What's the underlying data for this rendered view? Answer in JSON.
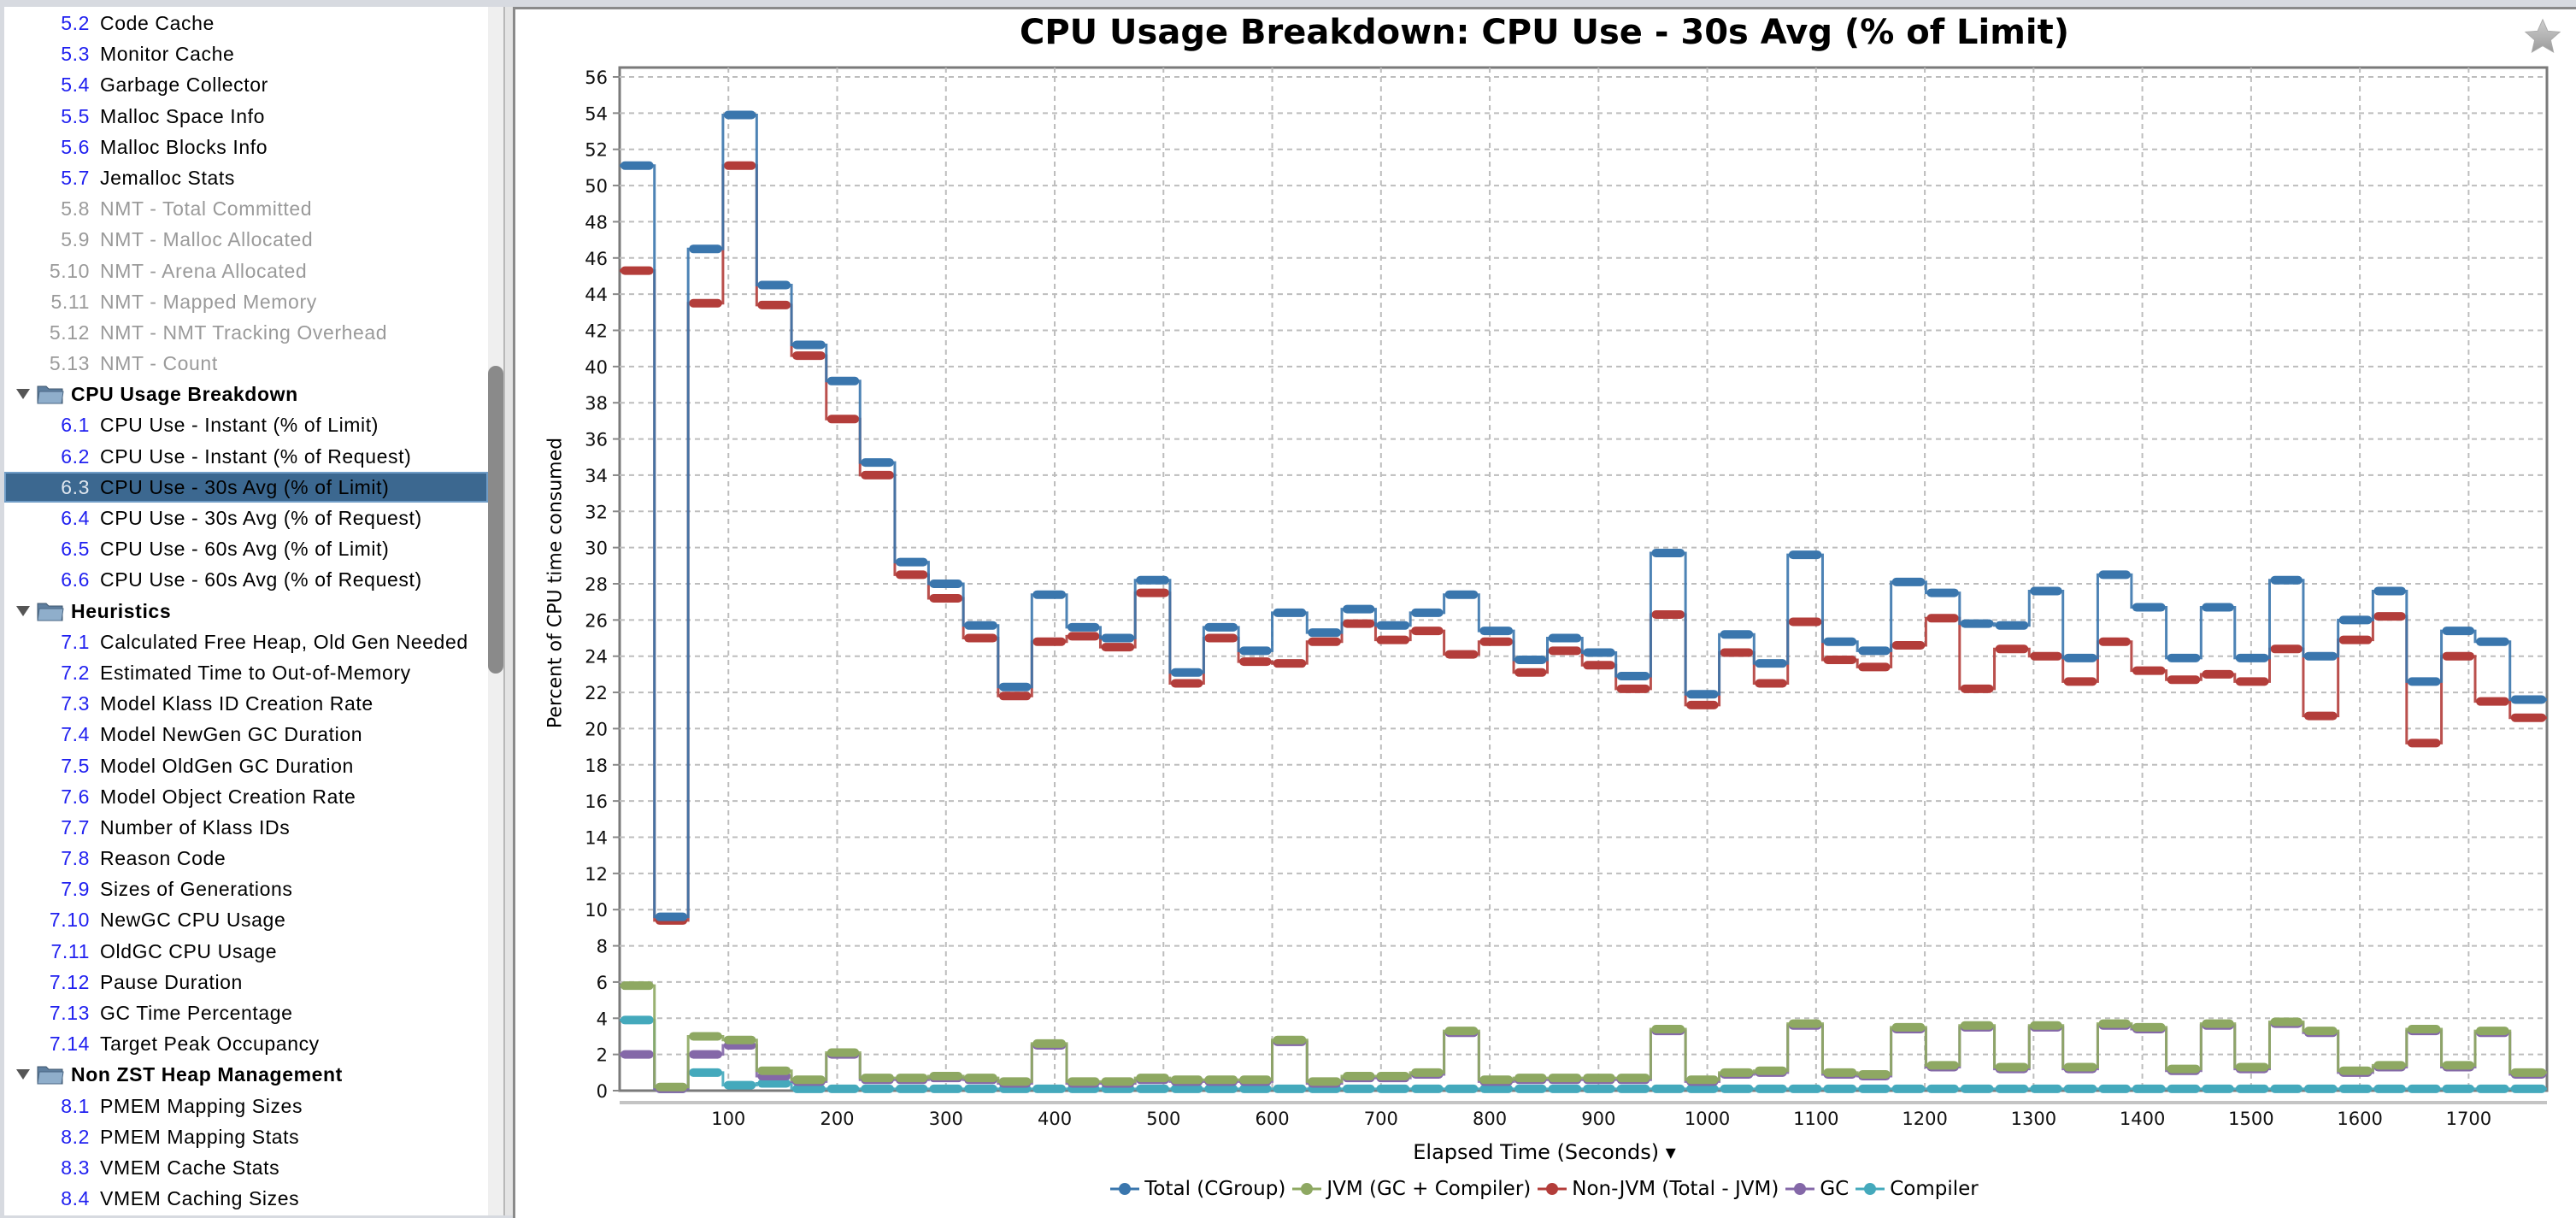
{
  "sidebar": {
    "items": [
      {
        "num": "5.2",
        "label": "Code Cache",
        "kind": "item"
      },
      {
        "num": "5.3",
        "label": "Monitor Cache",
        "kind": "item"
      },
      {
        "num": "5.4",
        "label": "Garbage Collector",
        "kind": "item"
      },
      {
        "num": "5.5",
        "label": "Malloc Space Info",
        "kind": "item"
      },
      {
        "num": "5.6",
        "label": "Malloc Blocks Info",
        "kind": "item"
      },
      {
        "num": "5.7",
        "label": "Jemalloc Stats",
        "kind": "item"
      },
      {
        "num": "5.8",
        "label": "NMT - Total Committed",
        "kind": "disabled"
      },
      {
        "num": "5.9",
        "label": "NMT - Malloc Allocated",
        "kind": "disabled"
      },
      {
        "num": "5.10",
        "label": "NMT - Arena Allocated",
        "kind": "disabled"
      },
      {
        "num": "5.11",
        "label": "NMT - Mapped Memory",
        "kind": "disabled"
      },
      {
        "num": "5.12",
        "label": "NMT - NMT Tracking Overhead",
        "kind": "disabled"
      },
      {
        "num": "5.13",
        "label": "NMT - Count",
        "kind": "disabled"
      },
      {
        "num": "",
        "label": "CPU Usage Breakdown",
        "kind": "header"
      },
      {
        "num": "6.1",
        "label": "CPU Use - Instant (% of Limit)",
        "kind": "item"
      },
      {
        "num": "6.2",
        "label": "CPU Use - Instant (% of Request)",
        "kind": "item"
      },
      {
        "num": "6.3",
        "label": "CPU Use - 30s Avg (% of Limit)",
        "kind": "selected"
      },
      {
        "num": "6.4",
        "label": "CPU Use - 30s Avg (% of Request)",
        "kind": "item"
      },
      {
        "num": "6.5",
        "label": "CPU Use - 60s Avg (% of Limit)",
        "kind": "item"
      },
      {
        "num": "6.6",
        "label": "CPU Use - 60s Avg (% of Request)",
        "kind": "item"
      },
      {
        "num": "",
        "label": "Heuristics",
        "kind": "header"
      },
      {
        "num": "7.1",
        "label": "Calculated Free Heap, Old Gen Needed",
        "kind": "item"
      },
      {
        "num": "7.2",
        "label": "Estimated Time to Out-of-Memory",
        "kind": "item"
      },
      {
        "num": "7.3",
        "label": "Model Klass ID Creation Rate",
        "kind": "item"
      },
      {
        "num": "7.4",
        "label": "Model NewGen GC Duration",
        "kind": "item"
      },
      {
        "num": "7.5",
        "label": "Model OldGen GC Duration",
        "kind": "item"
      },
      {
        "num": "7.6",
        "label": "Model Object Creation Rate",
        "kind": "item"
      },
      {
        "num": "7.7",
        "label": "Number of Klass IDs",
        "kind": "item"
      },
      {
        "num": "7.8",
        "label": "Reason Code",
        "kind": "item"
      },
      {
        "num": "7.9",
        "label": "Sizes of Generations",
        "kind": "item"
      },
      {
        "num": "7.10",
        "label": "NewGC CPU Usage",
        "kind": "item"
      },
      {
        "num": "7.11",
        "label": "OldGC CPU Usage",
        "kind": "item"
      },
      {
        "num": "7.12",
        "label": "Pause Duration",
        "kind": "item"
      },
      {
        "num": "7.13",
        "label": "GC Time Percentage",
        "kind": "item"
      },
      {
        "num": "7.14",
        "label": "Target Peak Occupancy",
        "kind": "item"
      },
      {
        "num": "",
        "label": "Non ZST Heap Management",
        "kind": "header"
      },
      {
        "num": "8.1",
        "label": "PMEM Mapping Sizes",
        "kind": "item"
      },
      {
        "num": "8.2",
        "label": "PMEM Mapping Stats",
        "kind": "item"
      },
      {
        "num": "8.3",
        "label": "VMEM Cache Stats",
        "kind": "item"
      },
      {
        "num": "8.4",
        "label": "VMEM Caching Sizes",
        "kind": "item"
      }
    ]
  },
  "icons": {
    "favorite": "star-icon",
    "folder": "folder-icon",
    "expand": "triangle-down-icon",
    "xaxis_menu": "caret-down-icon"
  },
  "chart_data": {
    "type": "line",
    "step": true,
    "title": "CPU Usage Breakdown: CPU Use - 30s Avg (% of Limit)",
    "xlabel": "Elapsed Time (Seconds)",
    "xlabel_caret": "▾",
    "ylabel": "Percent of CPU time consumed",
    "xlim": [
      0,
      1772
    ],
    "ylim": [
      0,
      56.5
    ],
    "xticks": [
      100,
      200,
      300,
      400,
      500,
      600,
      700,
      800,
      900,
      1000,
      1100,
      1200,
      1300,
      1400,
      1500,
      1600,
      1700
    ],
    "yticks": [
      0,
      2,
      4,
      6,
      8,
      10,
      12,
      14,
      16,
      18,
      20,
      22,
      24,
      26,
      28,
      30,
      32,
      34,
      36,
      38,
      40,
      42,
      44,
      46,
      48,
      50,
      52,
      54,
      56
    ],
    "grid": true,
    "legend_position": "bottom",
    "x": [
      0,
      32,
      63,
      95,
      126,
      158,
      190,
      221,
      253,
      284,
      316,
      348,
      379,
      411,
      442,
      474,
      506,
      537,
      569,
      600,
      632,
      664,
      695,
      727,
      758,
      790,
      822,
      853,
      885,
      916,
      948,
      980,
      1011,
      1043,
      1074,
      1106,
      1138,
      1169,
      1201,
      1232,
      1264,
      1296,
      1327,
      1359,
      1390,
      1422,
      1454,
      1485,
      1517,
      1548,
      1580,
      1612,
      1643,
      1675,
      1706,
      1738
    ],
    "series": [
      {
        "name": "Total (CGroup)",
        "color": "#3a76ad",
        "values": [
          51.1,
          9.6,
          46.5,
          53.9,
          44.5,
          41.2,
          39.2,
          34.7,
          29.2,
          28.0,
          25.7,
          22.3,
          27.4,
          25.6,
          25.0,
          28.2,
          23.1,
          25.6,
          24.3,
          26.4,
          25.3,
          26.6,
          25.7,
          26.4,
          27.4,
          25.4,
          23.8,
          25.0,
          24.2,
          22.9,
          29.7,
          21.9,
          25.2,
          23.6,
          29.6,
          24.8,
          24.3,
          28.1,
          27.5,
          25.8,
          25.7,
          27.6,
          23.9,
          28.5,
          26.7,
          23.9,
          26.7,
          23.9,
          28.2,
          24.0,
          26.0,
          27.6,
          22.6,
          25.4,
          24.8,
          21.6
        ]
      },
      {
        "name": "JVM (GC + Compiler)",
        "color": "#8ea862",
        "values": [
          5.8,
          0.2,
          3.0,
          2.8,
          1.1,
          0.6,
          2.1,
          0.7,
          0.7,
          0.8,
          0.7,
          0.5,
          2.6,
          0.5,
          0.5,
          0.7,
          0.6,
          0.6,
          0.6,
          2.8,
          0.5,
          0.8,
          0.8,
          1.0,
          3.3,
          0.6,
          0.7,
          0.7,
          0.7,
          0.7,
          3.4,
          0.6,
          1.0,
          1.1,
          3.7,
          1.0,
          0.9,
          3.5,
          1.4,
          3.6,
          1.3,
          3.6,
          1.3,
          3.7,
          3.5,
          1.2,
          3.7,
          1.3,
          3.8,
          3.3,
          1.1,
          1.4,
          3.4,
          1.4,
          3.3,
          1.0
        ]
      },
      {
        "name": "Non-JVM (Total - JVM)",
        "color": "#b33d3a",
        "values": [
          45.3,
          9.4,
          43.5,
          51.1,
          43.4,
          40.6,
          37.1,
          34.0,
          28.5,
          27.2,
          25.0,
          21.8,
          24.8,
          25.1,
          24.5,
          27.5,
          22.5,
          25.0,
          23.7,
          23.6,
          24.8,
          25.8,
          24.9,
          25.4,
          24.1,
          24.8,
          23.1,
          24.3,
          23.5,
          22.2,
          26.3,
          21.3,
          24.2,
          22.5,
          25.9,
          23.8,
          23.4,
          24.6,
          26.1,
          22.2,
          24.4,
          24.0,
          22.6,
          24.8,
          23.2,
          22.7,
          23.0,
          22.6,
          24.4,
          20.7,
          24.9,
          26.2,
          19.2,
          24.0,
          21.5,
          20.6
        ]
      },
      {
        "name": "GC",
        "color": "#8468a8",
        "values": [
          2.0,
          0.1,
          2.0,
          2.5,
          0.8,
          0.5,
          2.0,
          0.6,
          0.6,
          0.7,
          0.6,
          0.4,
          2.5,
          0.4,
          0.4,
          0.6,
          0.5,
          0.5,
          0.5,
          2.7,
          0.4,
          0.7,
          0.7,
          0.9,
          3.2,
          0.5,
          0.6,
          0.6,
          0.6,
          0.6,
          3.3,
          0.5,
          0.9,
          1.0,
          3.6,
          0.9,
          0.8,
          3.4,
          1.3,
          3.5,
          1.2,
          3.5,
          1.2,
          3.6,
          3.4,
          1.1,
          3.6,
          1.2,
          3.7,
          3.2,
          1.0,
          1.3,
          3.3,
          1.3,
          3.2,
          0.9
        ]
      },
      {
        "name": "Compiler",
        "color": "#44a9bc",
        "values": [
          3.9,
          0.1,
          1.0,
          0.3,
          0.4,
          0.1,
          0.1,
          0.1,
          0.1,
          0.1,
          0.1,
          0.1,
          0.1,
          0.1,
          0.1,
          0.1,
          0.1,
          0.1,
          0.1,
          0.1,
          0.1,
          0.1,
          0.1,
          0.1,
          0.1,
          0.1,
          0.1,
          0.1,
          0.1,
          0.1,
          0.1,
          0.1,
          0.1,
          0.1,
          0.1,
          0.1,
          0.1,
          0.1,
          0.1,
          0.1,
          0.1,
          0.1,
          0.1,
          0.1,
          0.1,
          0.1,
          0.1,
          0.1,
          0.1,
          0.1,
          0.1,
          0.1,
          0.1,
          0.1,
          0.1,
          0.1
        ]
      }
    ]
  }
}
